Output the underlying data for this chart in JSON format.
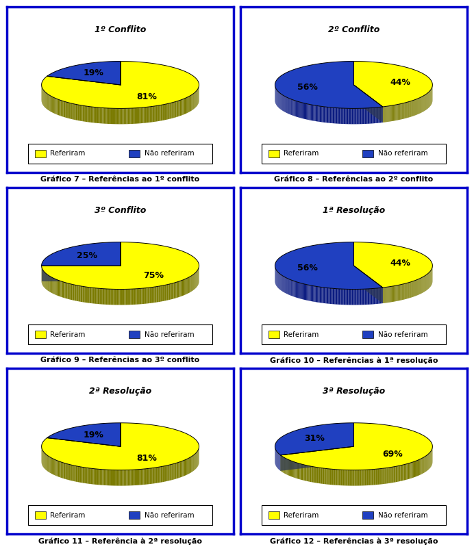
{
  "charts": [
    {
      "title": "1º Conflito",
      "values": [
        81,
        19
      ]
    },
    {
      "title": "2º Conflito",
      "values": [
        44,
        56
      ]
    },
    {
      "title": "3º Conflito",
      "values": [
        75,
        25
      ]
    },
    {
      "title": "1ª Resolução",
      "values": [
        44,
        56
      ]
    },
    {
      "title": "2ª Resolução",
      "values": [
        81,
        19
      ]
    },
    {
      "title": "3ª Resolução",
      "values": [
        69,
        31
      ]
    }
  ],
  "captions": [
    "Gráfico 7 – Referências ao 1º conflito",
    "Gráfico 8 – Referências ao 2º conflito",
    "Gráfico 9 – Referências ao 3º conflito",
    "Gráfico 10 – Referências à 1ª resolução",
    "Gráfico 11 – Referência à 2ª resolução",
    "Gráfico 12 – Referências à 3ª resolução"
  ],
  "yellow": "#FFFF00",
  "blue": "#2040C0",
  "yellow_side": "#7A7A00",
  "blue_side": "#0A1A80",
  "legend_labels": [
    "Referiram",
    "Não referiram"
  ],
  "box_color": "#0000CC",
  "background": "#FFFFFF"
}
